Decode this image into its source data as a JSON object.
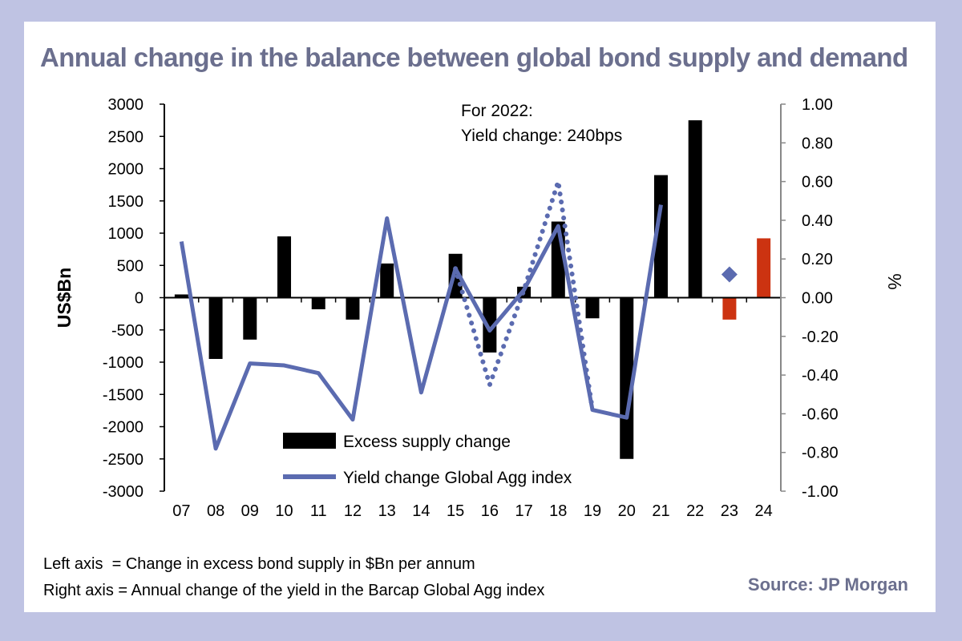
{
  "title": "Annual change in the balance between global bond supply and demand",
  "notes": {
    "left_axis": "Left axis  = Change in excess bond supply in $Bn per annum",
    "right_axis": "Right axis = Annual change of the yield in the Barcap Global Agg index"
  },
  "source": "Source: JP Morgan",
  "annotation": [
    "For 2022:",
    "Yield change: 240bps"
  ],
  "colors": {
    "bar": "#000000",
    "bar_forecast": "#cc3311",
    "line": "#5b6bb0",
    "marker": "#5b6bb0",
    "frame": "#bfc3e3",
    "title": "#6b6f8e"
  },
  "chart_data": {
    "type": "bar",
    "categories": [
      "07",
      "08",
      "09",
      "10",
      "11",
      "12",
      "13",
      "14",
      "15",
      "16",
      "17",
      "18",
      "19",
      "20",
      "21",
      "22",
      "23",
      "24"
    ],
    "ylabel": "US$Bn",
    "y2label": "%",
    "ylim": [
      -3000,
      3000
    ],
    "y2lim": [
      -1.0,
      1.0
    ],
    "yticks": [
      "3000",
      "2500",
      "2000",
      "1500",
      "1000",
      "500",
      "0",
      "-500",
      "-1000",
      "-1500",
      "-2000",
      "-2500",
      "-3000"
    ],
    "y2ticks": [
      "1.00",
      "0.80",
      "0.60",
      "0.40",
      "0.20",
      "0.00",
      "-0.20",
      "-0.40",
      "-0.60",
      "-0.80",
      "-1.00"
    ],
    "legend": [
      "Excess supply change",
      "Yield change Global Agg index"
    ],
    "legend_placement": "bottom-center",
    "series": [
      {
        "name": "Excess supply change",
        "axis": "left",
        "values": [
          50,
          -950,
          -650,
          950,
          -180,
          -340,
          530,
          0,
          680,
          -850,
          170,
          1180,
          -320,
          -2500,
          1900,
          2750,
          -340,
          920
        ],
        "forecast_from_index": 16
      },
      {
        "name": "Yield change Global Agg index",
        "axis": "right",
        "values": [
          0.29,
          -0.78,
          -0.34,
          -0.35,
          -0.39,
          -0.63,
          0.41,
          -0.49,
          0.15,
          -0.17,
          0.04,
          0.37,
          -0.58,
          -0.62,
          0.48,
          null,
          0.12,
          null
        ]
      },
      {
        "axis": "right",
        "style": "dotted",
        "x": [
          "15",
          "16",
          "17",
          "18",
          "19"
        ],
        "values": [
          0.15,
          -0.45,
          0.04,
          0.6,
          -0.58
        ]
      }
    ]
  }
}
